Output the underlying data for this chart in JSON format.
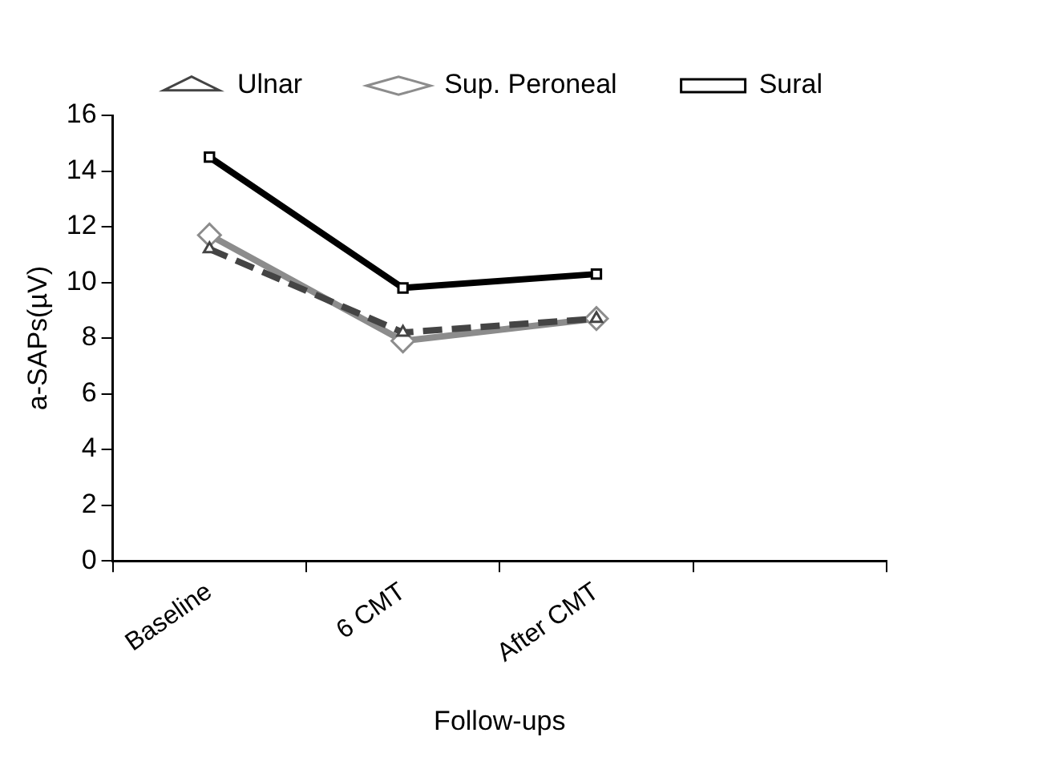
{
  "chart_data": {
    "type": "line",
    "xlabel": "Follow-ups",
    "ylabel": "a-SAPs(µV)",
    "categories": [
      "Baseline",
      "6 CMT",
      "After CMT",
      null
    ],
    "ylim": [
      0,
      16
    ],
    "yticks": [
      0,
      2,
      4,
      6,
      8,
      10,
      12,
      14,
      16
    ],
    "grid": false,
    "legend": "top right",
    "series": [
      {
        "name": "Ulnar",
        "color": "#444444",
        "values": [
          11.2,
          8.2,
          8.7,
          null
        ],
        "marker": "triangle",
        "line_style": "dashed"
      },
      {
        "name": "Sup. Peroneal",
        "color": "#8c8c8c",
        "values": [
          11.7,
          7.9,
          8.7,
          null
        ],
        "marker": "diamond",
        "line_style": "solid"
      },
      {
        "name": "Sural",
        "color": "#000000",
        "values": [
          14.5,
          9.8,
          10.3,
          null
        ],
        "marker": "square",
        "line_style": "solid"
      }
    ]
  }
}
